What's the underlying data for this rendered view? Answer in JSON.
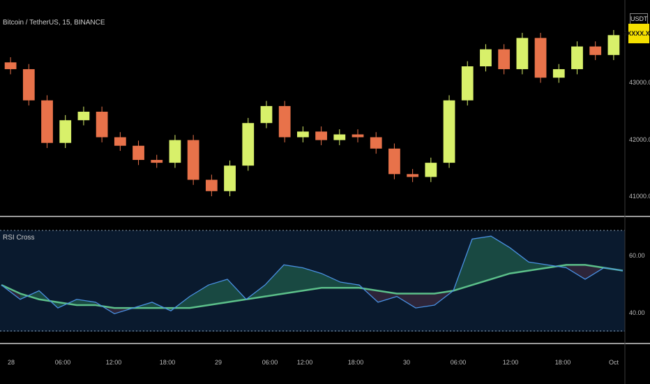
{
  "header": {
    "symbol_line": "Bitcoin / TetherUS, 15, BINANCE",
    "currency": "USDT",
    "last_price": "4XXXX.XX"
  },
  "indicator": {
    "name": "RSI Cross"
  },
  "colors": {
    "bull_candle": "#d8f06a",
    "bear_candle": "#e8724a",
    "rsi_line": "#4a90e2",
    "ma_line": "#5cc08a",
    "panel_bg": "#0a1a2e",
    "price_tag": "#f5e000"
  },
  "chart_data": [
    {
      "type": "candlestick",
      "title": "Bitcoin / TetherUS, 15, BINANCE",
      "y_tick_labels": [
        "43000.00",
        "42000.00",
        "41000.00"
      ],
      "x_tick_labels": [
        "28",
        "06:00",
        "12:00",
        "18:00",
        "29",
        "06:00",
        "12:00",
        "18:00",
        "30",
        "06:00",
        "12:00",
        "18:00",
        "Oct"
      ],
      "series": [
        {
          "close": [
            43250,
            42700,
            41950,
            42350,
            42500,
            42050,
            41900,
            41650,
            41600,
            42000,
            41300,
            41100,
            41550,
            42300,
            42600,
            42050,
            42150,
            42000,
            42100,
            42050,
            41850,
            41400,
            41350,
            41600,
            42700,
            43300,
            43600,
            43250,
            43800,
            43100,
            43250,
            43650,
            43500,
            43850
          ]
        }
      ]
    },
    {
      "type": "line",
      "title": "RSI Cross",
      "y_tick_labels": [
        "60.00",
        "40.00"
      ],
      "ylim": [
        34,
        69
      ],
      "upper_band": 66,
      "lower_band": 36,
      "grid": false,
      "series": [
        {
          "name": "RSI",
          "values": [
            50,
            45,
            48,
            42,
            45,
            44,
            40,
            42,
            44,
            41,
            46,
            50,
            52,
            45,
            50,
            57,
            56,
            54,
            51,
            50,
            44,
            46,
            42,
            43,
            48,
            66,
            67,
            63,
            58,
            57,
            56,
            52,
            56,
            55
          ]
        },
        {
          "name": "MA",
          "values": [
            50,
            47,
            45,
            44,
            43,
            43,
            42,
            42,
            42,
            42,
            42,
            43,
            44,
            45,
            46,
            47,
            48,
            49,
            49,
            49,
            48,
            47,
            47,
            47,
            48,
            50,
            52,
            54,
            55,
            56,
            57,
            57,
            56,
            55
          ]
        }
      ]
    }
  ]
}
